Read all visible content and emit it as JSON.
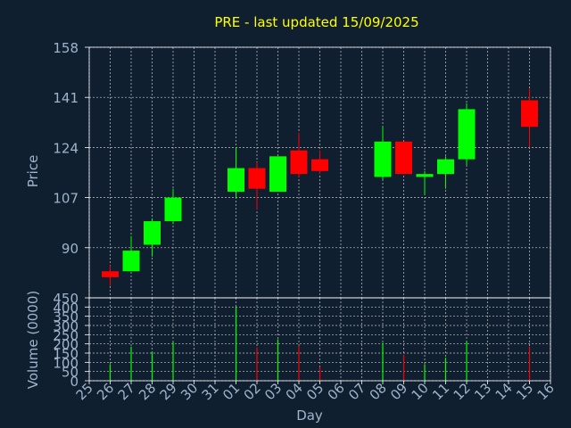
{
  "title": "PRE - last updated 15/09/2025",
  "colors": {
    "background": "#0f1f30",
    "title": "#ffff00",
    "axis_text": "#9fb4cc",
    "grid": "#c8c8c8",
    "frame": "#ffffff",
    "up": "#00ff00",
    "down": "#ff0000"
  },
  "chart_data": [
    {
      "type": "candlestick",
      "ylabel": "Price",
      "ylim": [
        73,
        158
      ],
      "yticks": [
        90,
        107,
        124,
        141,
        158
      ],
      "grid": true,
      "candles": [
        {
          "day": "26",
          "open": 82,
          "high": 84,
          "low": 77,
          "close": 80
        },
        {
          "day": "27",
          "open": 82,
          "high": 94,
          "low": 82,
          "close": 89
        },
        {
          "day": "28",
          "open": 91,
          "high": 100,
          "low": 87,
          "close": 99
        },
        {
          "day": "29",
          "open": 99,
          "high": 110,
          "low": 98,
          "close": 107
        },
        {
          "day": "01",
          "open": 109,
          "high": 124,
          "low": 107,
          "close": 117
        },
        {
          "day": "02",
          "open": 117,
          "high": 119,
          "low": 103,
          "close": 110
        },
        {
          "day": "03",
          "open": 109,
          "high": 121,
          "low": 109,
          "close": 121
        },
        {
          "day": "04",
          "open": 123,
          "high": 129,
          "low": 114,
          "close": 115
        },
        {
          "day": "05",
          "open": 120,
          "high": 123,
          "low": 115,
          "close": 116
        },
        {
          "day": "08",
          "open": 114,
          "high": 131,
          "low": 113,
          "close": 126
        },
        {
          "day": "09",
          "open": 126,
          "high": 126,
          "low": 115,
          "close": 115
        },
        {
          "day": "10",
          "open": 114,
          "high": 116,
          "low": 108,
          "close": 115
        },
        {
          "day": "11",
          "open": 115,
          "high": 121,
          "low": 110,
          "close": 120
        },
        {
          "day": "12",
          "open": 120,
          "high": 139,
          "low": 118,
          "close": 137
        },
        {
          "day": "15",
          "open": 140,
          "high": 144,
          "low": 124,
          "close": 131
        }
      ]
    },
    {
      "type": "bar",
      "ylabel": "Volume (0000)",
      "ylim": [
        0,
        450
      ],
      "yticks": [
        0,
        50,
        100,
        150,
        200,
        250,
        300,
        350,
        400,
        450
      ],
      "grid": true,
      "volumes": [
        {
          "day": "26",
          "value": 90,
          "direction": "up"
        },
        {
          "day": "27",
          "value": 185,
          "direction": "up"
        },
        {
          "day": "28",
          "value": 155,
          "direction": "up"
        },
        {
          "day": "29",
          "value": 210,
          "direction": "up"
        },
        {
          "day": "01",
          "value": 400,
          "direction": "up"
        },
        {
          "day": "02",
          "value": 180,
          "direction": "down"
        },
        {
          "day": "03",
          "value": 225,
          "direction": "up"
        },
        {
          "day": "04",
          "value": 190,
          "direction": "down"
        },
        {
          "day": "05",
          "value": 75,
          "direction": "down"
        },
        {
          "day": "08",
          "value": 205,
          "direction": "up"
        },
        {
          "day": "09",
          "value": 140,
          "direction": "down"
        },
        {
          "day": "10",
          "value": 90,
          "direction": "up"
        },
        {
          "day": "11",
          "value": 125,
          "direction": "up"
        },
        {
          "day": "12",
          "value": 215,
          "direction": "up"
        },
        {
          "day": "15",
          "value": 185,
          "direction": "down"
        }
      ]
    }
  ],
  "xaxis": {
    "label": "Day",
    "ticks": [
      "25",
      "26",
      "27",
      "28",
      "29",
      "30",
      "31",
      "01",
      "02",
      "03",
      "04",
      "05",
      "06",
      "07",
      "08",
      "09",
      "10",
      "11",
      "12",
      "13",
      "14",
      "15",
      "16"
    ]
  }
}
